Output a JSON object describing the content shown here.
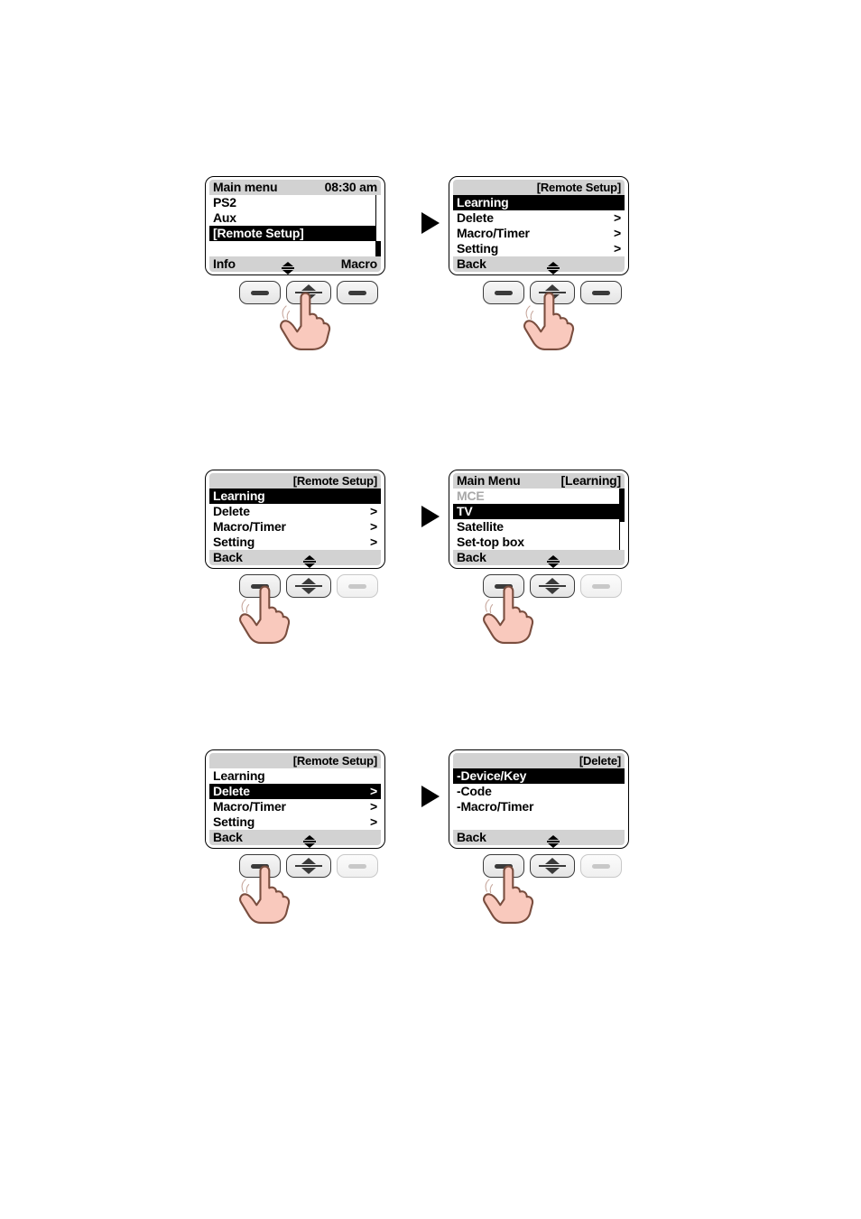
{
  "colors": {
    "bg_white": "#ffffff",
    "ink": "#000000",
    "header_grey": "#d2d2d2",
    "dim_text": "#a8a8a8",
    "btn_border": "#3a3a3a",
    "btn_pale": "#c8c8c8",
    "hand_fill": "#f9c9bd",
    "hand_stroke": "#7a4e3f"
  },
  "row1": {
    "left": {
      "type": "lcd-menu",
      "header_left": "Main menu",
      "header_right": "08:30 am",
      "items": [
        {
          "label": "PS2",
          "selected": false,
          "chevron": false
        },
        {
          "label": "Aux",
          "selected": false,
          "chevron": false
        },
        {
          "label": "[Remote Setup]",
          "selected": true,
          "chevron": false
        }
      ],
      "blank_rows": 1,
      "footer_left": "Info",
      "footer_right": "Macro",
      "scrollbar": {
        "start": 0.75,
        "end": 1.0
      },
      "hand_target": "center",
      "pale_left": false,
      "pale_right": false
    },
    "right": {
      "type": "lcd-menu",
      "header_left": "",
      "header_right": "[Remote Setup]",
      "items": [
        {
          "label": "Learning",
          "selected": true,
          "chevron": false
        },
        {
          "label": "Delete",
          "selected": false,
          "chevron": true
        },
        {
          "label": "Macro/Timer",
          "selected": false,
          "chevron": true
        },
        {
          "label": "Setting",
          "selected": false,
          "chevron": true
        }
      ],
      "blank_rows": 0,
      "footer_left": "Back",
      "footer_right": "",
      "scrollbar": null,
      "hand_target": "center",
      "pale_left": false,
      "pale_right": false
    }
  },
  "row2": {
    "left": {
      "type": "lcd-menu",
      "header_left": "",
      "header_right": "[Remote Setup]",
      "items": [
        {
          "label": "Learning",
          "selected": true,
          "chevron": false
        },
        {
          "label": "Delete",
          "selected": false,
          "chevron": true
        },
        {
          "label": "Macro/Timer",
          "selected": false,
          "chevron": true
        },
        {
          "label": "Setting",
          "selected": false,
          "chevron": true
        }
      ],
      "blank_rows": 0,
      "footer_left": "Back",
      "footer_right": "",
      "scrollbar": null,
      "hand_target": "left",
      "pale_left": false,
      "pale_right": true
    },
    "right": {
      "type": "lcd-menu",
      "header_left": "Main Menu",
      "header_right": "[Learning]",
      "items": [
        {
          "label": "MCE",
          "selected": false,
          "chevron": false,
          "dim": true
        },
        {
          "label": "TV",
          "selected": true,
          "chevron": false
        },
        {
          "label": "Satellite",
          "selected": false,
          "chevron": false
        },
        {
          "label": "Set-top box",
          "selected": false,
          "chevron": false
        }
      ],
      "blank_rows": 0,
      "footer_left": "Back",
      "footer_right": "",
      "scrollbar": {
        "start": 0.0,
        "end": 0.55
      },
      "hand_target": "left",
      "pale_left": false,
      "pale_right": true
    }
  },
  "row3": {
    "left": {
      "type": "lcd-menu",
      "header_left": "",
      "header_right": "[Remote Setup]",
      "items": [
        {
          "label": "Learning",
          "selected": false,
          "chevron": false
        },
        {
          "label": "Delete",
          "selected": true,
          "chevron": true
        },
        {
          "label": "Macro/Timer",
          "selected": false,
          "chevron": true
        },
        {
          "label": "Setting",
          "selected": false,
          "chevron": true
        }
      ],
      "blank_rows": 0,
      "footer_left": "Back",
      "footer_right": "",
      "scrollbar": null,
      "hand_target": "left",
      "pale_left": false,
      "pale_right": true
    },
    "right": {
      "type": "lcd-menu",
      "header_left": "",
      "header_right": "[Delete]",
      "items": [
        {
          "label": "-Device/Key",
          "selected": true,
          "chevron": false
        },
        {
          "label": "-Code",
          "selected": false,
          "chevron": false
        },
        {
          "label": "-Macro/Timer",
          "selected": false,
          "chevron": false
        }
      ],
      "blank_rows": 1,
      "footer_left": "Back",
      "footer_right": "",
      "scrollbar": null,
      "hand_target": "left",
      "pale_left": false,
      "pale_right": true
    }
  },
  "row_positions": {
    "row1": 195,
    "row2": 520,
    "row3": 830
  }
}
